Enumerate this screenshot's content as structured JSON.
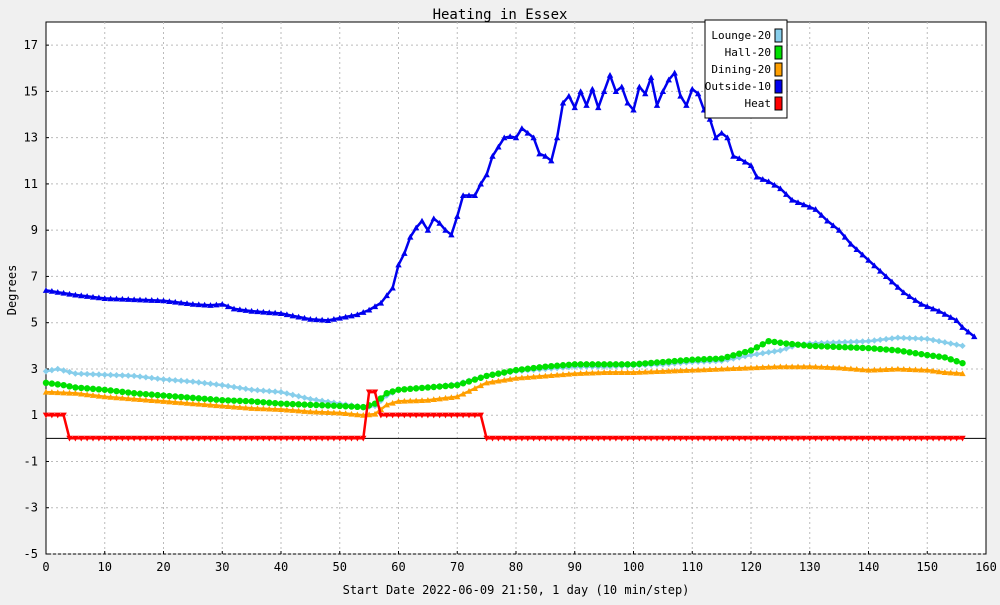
{
  "chart_data": {
    "type": "line",
    "title": "Heating in Essex",
    "xlabel": "Start Date 2022-06-09 21:50, 1 day (10 min/step)",
    "ylabel": "Degrees",
    "xlim": [
      0,
      160
    ],
    "ylim": [
      -5,
      18
    ],
    "x_ticks": [
      0,
      10,
      20,
      30,
      40,
      50,
      60,
      70,
      80,
      90,
      100,
      110,
      120,
      130,
      140,
      150,
      160
    ],
    "y_ticks": [
      -5,
      -3,
      -1,
      1,
      3,
      5,
      7,
      9,
      11,
      13,
      15,
      17
    ],
    "grid": true,
    "legend_position": "top-right",
    "reference_line_y": 0,
    "series": [
      {
        "name": "Lounge-20",
        "color": "#87ceeb",
        "marker": "diamond",
        "points": [
          [
            0,
            2.9
          ],
          [
            2,
            3.0
          ],
          [
            5,
            2.8
          ],
          [
            10,
            2.75
          ],
          [
            15,
            2.7
          ],
          [
            20,
            2.55
          ],
          [
            25,
            2.45
          ],
          [
            30,
            2.3
          ],
          [
            35,
            2.1
          ],
          [
            40,
            2.0
          ],
          [
            45,
            1.7
          ],
          [
            50,
            1.5
          ],
          [
            54,
            1.35
          ],
          [
            56,
            1.4
          ],
          [
            58,
            1.85
          ],
          [
            60,
            2.1
          ],
          [
            65,
            2.2
          ],
          [
            70,
            2.35
          ],
          [
            75,
            2.7
          ],
          [
            80,
            2.9
          ],
          [
            85,
            3.0
          ],
          [
            90,
            3.1
          ],
          [
            95,
            3.1
          ],
          [
            100,
            3.15
          ],
          [
            105,
            3.2
          ],
          [
            110,
            3.3
          ],
          [
            115,
            3.35
          ],
          [
            120,
            3.6
          ],
          [
            125,
            3.8
          ],
          [
            128,
            4.05
          ],
          [
            130,
            4.1
          ],
          [
            135,
            4.15
          ],
          [
            140,
            4.2
          ],
          [
            145,
            4.35
          ],
          [
            150,
            4.3
          ],
          [
            153,
            4.15
          ],
          [
            156,
            4.0
          ]
        ]
      },
      {
        "name": "Hall-20",
        "color": "#00e000",
        "marker": "circle",
        "points": [
          [
            0,
            2.4
          ],
          [
            3,
            2.3
          ],
          [
            5,
            2.2
          ],
          [
            10,
            2.1
          ],
          [
            15,
            1.95
          ],
          [
            20,
            1.85
          ],
          [
            25,
            1.75
          ],
          [
            30,
            1.65
          ],
          [
            35,
            1.6
          ],
          [
            40,
            1.5
          ],
          [
            45,
            1.45
          ],
          [
            50,
            1.4
          ],
          [
            54,
            1.35
          ],
          [
            56,
            1.5
          ],
          [
            58,
            1.95
          ],
          [
            60,
            2.1
          ],
          [
            65,
            2.2
          ],
          [
            70,
            2.3
          ],
          [
            75,
            2.7
          ],
          [
            80,
            2.95
          ],
          [
            85,
            3.1
          ],
          [
            90,
            3.2
          ],
          [
            95,
            3.2
          ],
          [
            100,
            3.2
          ],
          [
            105,
            3.3
          ],
          [
            110,
            3.4
          ],
          [
            115,
            3.45
          ],
          [
            120,
            3.8
          ],
          [
            123,
            4.2
          ],
          [
            126,
            4.1
          ],
          [
            130,
            4.0
          ],
          [
            135,
            3.95
          ],
          [
            140,
            3.9
          ],
          [
            145,
            3.8
          ],
          [
            150,
            3.6
          ],
          [
            153,
            3.5
          ],
          [
            156,
            3.25
          ]
        ]
      },
      {
        "name": "Dining-20",
        "color": "#ff9f00",
        "marker": "triangle",
        "points": [
          [
            0,
            2.0
          ],
          [
            5,
            1.95
          ],
          [
            10,
            1.8
          ],
          [
            15,
            1.7
          ],
          [
            20,
            1.6
          ],
          [
            25,
            1.5
          ],
          [
            30,
            1.4
          ],
          [
            35,
            1.3
          ],
          [
            40,
            1.25
          ],
          [
            45,
            1.15
          ],
          [
            50,
            1.1
          ],
          [
            54,
            1.0
          ],
          [
            56,
            1.05
          ],
          [
            58,
            1.45
          ],
          [
            60,
            1.6
          ],
          [
            65,
            1.65
          ],
          [
            70,
            1.8
          ],
          [
            75,
            2.4
          ],
          [
            80,
            2.6
          ],
          [
            85,
            2.7
          ],
          [
            90,
            2.8
          ],
          [
            95,
            2.85
          ],
          [
            100,
            2.85
          ],
          [
            105,
            2.9
          ],
          [
            110,
            2.95
          ],
          [
            115,
            3.0
          ],
          [
            120,
            3.05
          ],
          [
            125,
            3.1
          ],
          [
            130,
            3.1
          ],
          [
            135,
            3.05
          ],
          [
            140,
            2.95
          ],
          [
            145,
            3.0
          ],
          [
            150,
            2.95
          ],
          [
            153,
            2.85
          ],
          [
            156,
            2.8
          ]
        ]
      },
      {
        "name": "Outside-10",
        "color": "#0000ee",
        "marker": "triangle",
        "points": [
          [
            0,
            6.4
          ],
          [
            5,
            6.2
          ],
          [
            10,
            6.05
          ],
          [
            20,
            5.95
          ],
          [
            25,
            5.8
          ],
          [
            28,
            5.75
          ],
          [
            30,
            5.8
          ],
          [
            32,
            5.6
          ],
          [
            35,
            5.5
          ],
          [
            40,
            5.4
          ],
          [
            45,
            5.15
          ],
          [
            48,
            5.1
          ],
          [
            50,
            5.2
          ],
          [
            53,
            5.35
          ],
          [
            55,
            5.55
          ],
          [
            57,
            5.85
          ],
          [
            59,
            6.5
          ],
          [
            60,
            7.5
          ],
          [
            61,
            8.0
          ],
          [
            62,
            8.7
          ],
          [
            63,
            9.1
          ],
          [
            64,
            9.4
          ],
          [
            65,
            9.0
          ],
          [
            66,
            9.5
          ],
          [
            67,
            9.3
          ],
          [
            68,
            9.0
          ],
          [
            69,
            8.8
          ],
          [
            70,
            9.6
          ],
          [
            71,
            10.5
          ],
          [
            72,
            10.5
          ],
          [
            73,
            10.5
          ],
          [
            74,
            11.0
          ],
          [
            75,
            11.4
          ],
          [
            76,
            12.2
          ],
          [
            77,
            12.6
          ],
          [
            78,
            13.0
          ],
          [
            79,
            13.05
          ],
          [
            80,
            13.0
          ],
          [
            81,
            13.4
          ],
          [
            82,
            13.2
          ],
          [
            83,
            13.0
          ],
          [
            84,
            12.3
          ],
          [
            85,
            12.2
          ],
          [
            86,
            12.0
          ],
          [
            87,
            13.0
          ],
          [
            88,
            14.5
          ],
          [
            89,
            14.8
          ],
          [
            90,
            14.3
          ],
          [
            91,
            15.0
          ],
          [
            92,
            14.4
          ],
          [
            93,
            15.1
          ],
          [
            94,
            14.3
          ],
          [
            95,
            15.0
          ],
          [
            96,
            15.7
          ],
          [
            97,
            15.0
          ],
          [
            98,
            15.2
          ],
          [
            99,
            14.5
          ],
          [
            100,
            14.2
          ],
          [
            101,
            15.2
          ],
          [
            102,
            14.9
          ],
          [
            103,
            15.6
          ],
          [
            104,
            14.4
          ],
          [
            105,
            15.0
          ],
          [
            106,
            15.5
          ],
          [
            107,
            15.8
          ],
          [
            108,
            14.8
          ],
          [
            109,
            14.4
          ],
          [
            110,
            15.1
          ],
          [
            111,
            14.9
          ],
          [
            112,
            14.2
          ],
          [
            113,
            13.8
          ],
          [
            114,
            13.0
          ],
          [
            115,
            13.2
          ],
          [
            116,
            13.0
          ],
          [
            117,
            12.2
          ],
          [
            118,
            12.1
          ],
          [
            120,
            11.8
          ],
          [
            121,
            11.3
          ],
          [
            123,
            11.1
          ],
          [
            125,
            10.8
          ],
          [
            127,
            10.3
          ],
          [
            129,
            10.1
          ],
          [
            131,
            9.9
          ],
          [
            133,
            9.4
          ],
          [
            135,
            9.0
          ],
          [
            137,
            8.4
          ],
          [
            140,
            7.7
          ],
          [
            143,
            7.0
          ],
          [
            146,
            6.3
          ],
          [
            149,
            5.8
          ],
          [
            152,
            5.5
          ],
          [
            155,
            5.1
          ],
          [
            156,
            4.8
          ],
          [
            158,
            4.4
          ]
        ]
      },
      {
        "name": "Heat",
        "color": "#ff0000",
        "marker": "triangle-down",
        "points": [
          [
            0,
            1
          ],
          [
            1,
            1
          ],
          [
            2,
            1
          ],
          [
            3,
            1
          ],
          [
            4,
            0
          ],
          [
            54,
            0
          ],
          [
            55,
            2
          ],
          [
            56,
            2
          ],
          [
            57,
            1
          ],
          [
            74,
            1
          ],
          [
            75,
            0
          ],
          [
            156,
            0
          ]
        ]
      }
    ]
  }
}
